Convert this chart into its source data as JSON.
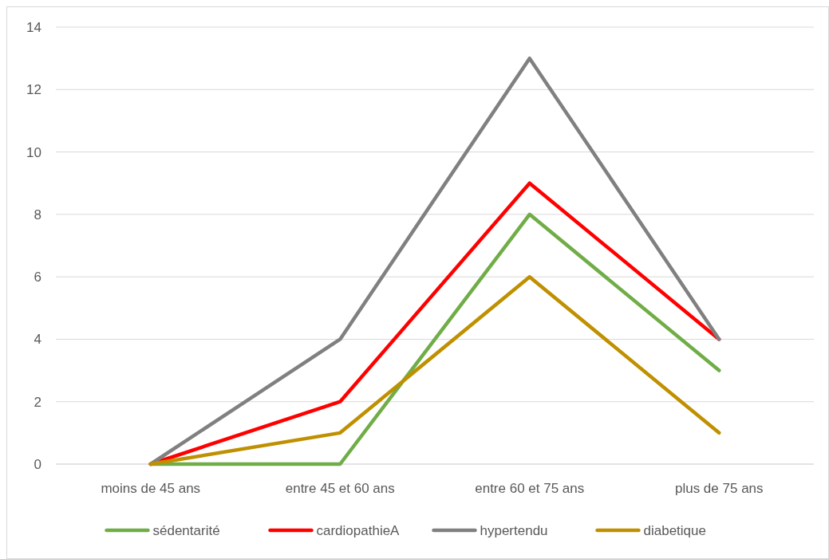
{
  "chart_data": {
    "type": "line",
    "categories": [
      "moins de 45 ans",
      "entre 45 et 60 ans",
      "entre 60 et 75 ans",
      "plus de 75 ans"
    ],
    "series": [
      {
        "name": "sédentarité",
        "color": "#70ad47",
        "values": [
          0,
          0,
          8,
          3
        ]
      },
      {
        "name": "cardiopathieA",
        "color": "#ff0000",
        "values": [
          0,
          2,
          9,
          4
        ]
      },
      {
        "name": "hypertendu",
        "color": "#808080",
        "values": [
          0,
          4,
          13,
          4
        ]
      },
      {
        "name": "diabetique",
        "color": "#bf9000",
        "values": [
          0,
          1,
          6,
          1
        ]
      }
    ],
    "ylim": [
      0,
      14
    ],
    "yticks": [
      0,
      2,
      4,
      6,
      8,
      10,
      12,
      14
    ],
    "grid": "y",
    "legend": "bottom",
    "marker": "none",
    "line_style": "solid"
  }
}
